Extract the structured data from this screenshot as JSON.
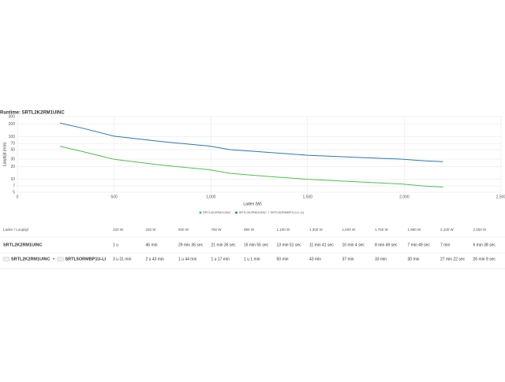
{
  "chart_data": {
    "type": "line",
    "title": "Runtime: SRTL2K2RM1UINC",
    "xlabel": "Laden (W)",
    "ylabel": "Looptijd (min)",
    "x": [
      220,
      330,
      500,
      750,
      990,
      1100,
      1300,
      1500,
      1750,
      1980,
      2100,
      2200
    ],
    "series": [
      {
        "name": "SRTL2K2RM1UINC",
        "color": "#4cc24c",
        "values": [
          60,
          46,
          29.6,
          21.58,
          16.92,
          13.85,
          11.68,
          10.07,
          8.82,
          7.82,
          7,
          6.63
        ]
      },
      {
        "name": "SRTL2K2RM1UINC + SRTL5ORMBP1U-LI (1)",
        "color": "#2a78b8",
        "values": [
          211,
          163,
          104,
          77,
          61,
          50,
          43,
          37,
          33,
          30,
          27.37,
          26.15
        ]
      }
    ],
    "xlim": [
      0,
      2500
    ],
    "xticks": [
      0,
      {
        "value": 500,
        "label": "500"
      },
      {
        "value": 1000,
        "label": "1,000"
      },
      {
        "value": 1500,
        "label": "1,500"
      },
      {
        "value": 2000,
        "label": "2,000"
      },
      {
        "value": 2500,
        "label": "2,500"
      }
    ],
    "ylim": [
      5,
      300
    ],
    "yscale": "log",
    "yticks": [
      300,
      200,
      100,
      70,
      50,
      30,
      20,
      10,
      7,
      5
    ],
    "grid": true
  },
  "table": {
    "header": [
      "Laden / Looptijd",
      "220 W",
      "330 W",
      "500 W",
      "750 W",
      "990 W",
      "1,100 W",
      "1,300 W",
      "1,500 W",
      "1,750 W",
      "1,980 W",
      "2,100 W",
      "2,200 W"
    ],
    "rows": [
      {
        "label": [
          "SRTL2K2RM1UINC"
        ],
        "cells": [
          "1 u",
          "46 min",
          "29 min 36 sec",
          "21 min 35 sec",
          "16 min 55 sec",
          "13 min 51 sec",
          "11 min 41 sec",
          "10 min 4 sec",
          "8 min 49 sec",
          "7 min 49 sec",
          "7 min",
          "6 min 38 sec"
        ]
      },
      {
        "label": [
          "SRTL2K2RM1UINC",
          "+",
          "SRTL5ORMBP1U-LI"
        ],
        "cells": [
          "3 u 31 min",
          "2 u 43 min",
          "1 u 44 min",
          "1 u 17 min",
          "1 u 1 min",
          "50 min",
          "43 min",
          "37 min",
          "33 min",
          "30 min",
          "27 min 22 sec",
          "26 min 9 sec"
        ]
      }
    ]
  }
}
